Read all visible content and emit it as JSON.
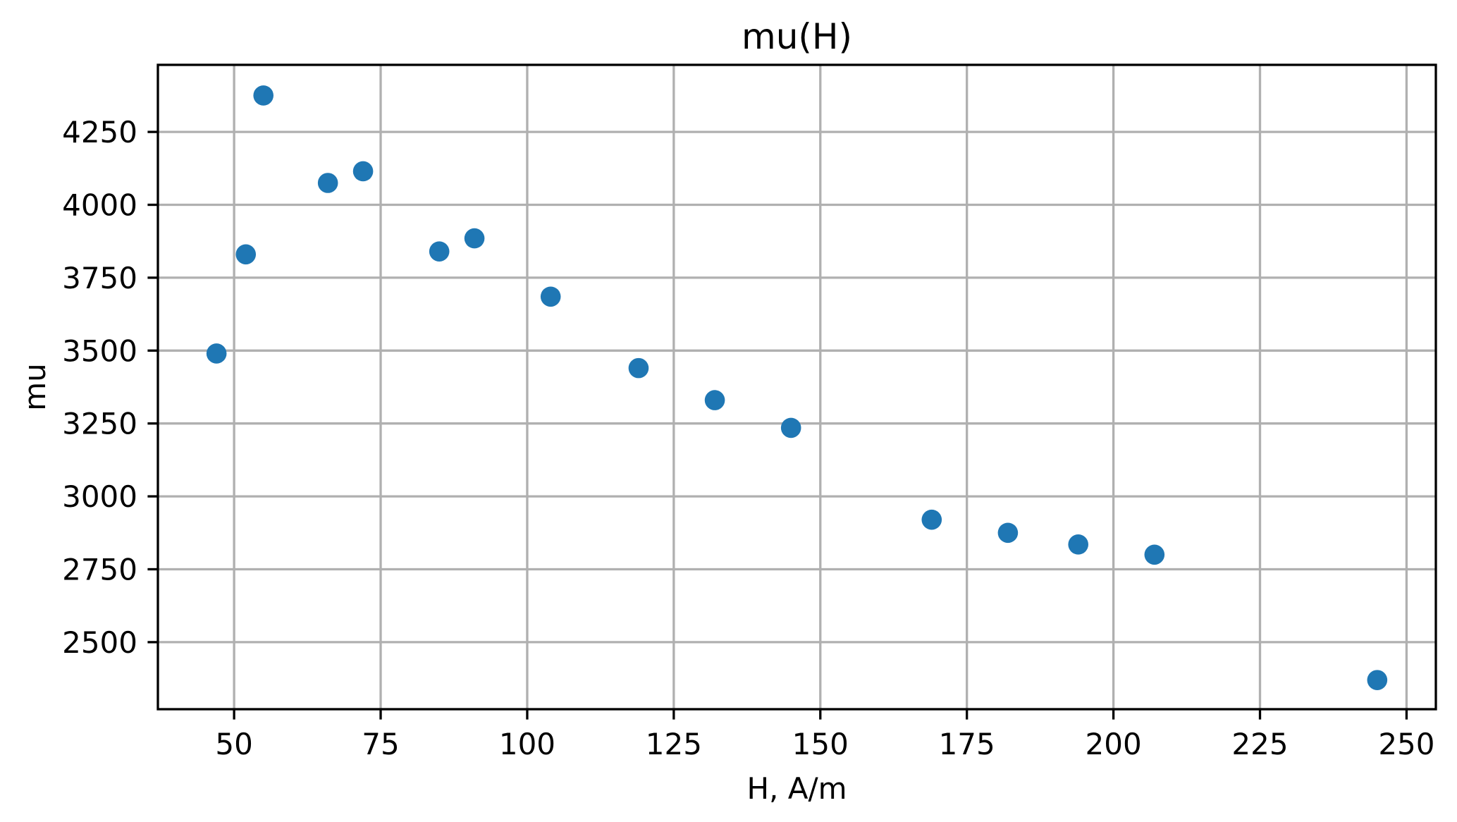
{
  "chart_data": {
    "type": "scatter",
    "title": "mu(H)",
    "xlabel": "H, A/m",
    "ylabel": "mu",
    "x": [
      47,
      52,
      55,
      66,
      72,
      85,
      91,
      104,
      119,
      132,
      145,
      169,
      182,
      194,
      207,
      245
    ],
    "y": [
      3490,
      3830,
      4375,
      4075,
      4115,
      3840,
      3885,
      3685,
      3440,
      3330,
      3235,
      2920,
      2875,
      2835,
      2800,
      2370
    ],
    "xlim": [
      37,
      255
    ],
    "ylim": [
      2270,
      4480
    ],
    "xticks": [
      50,
      75,
      100,
      125,
      150,
      175,
      200,
      225,
      250
    ],
    "yticks": [
      2500,
      2750,
      3000,
      3250,
      3500,
      3750,
      4000,
      4250
    ],
    "grid": true,
    "legend": "none",
    "marker_shape": "circle",
    "marker_color": "#1f77b4",
    "grid_color": "#b0b0b0",
    "spine_color": "#000000",
    "text_color": "#000000",
    "background_color": "#ffffff"
  }
}
